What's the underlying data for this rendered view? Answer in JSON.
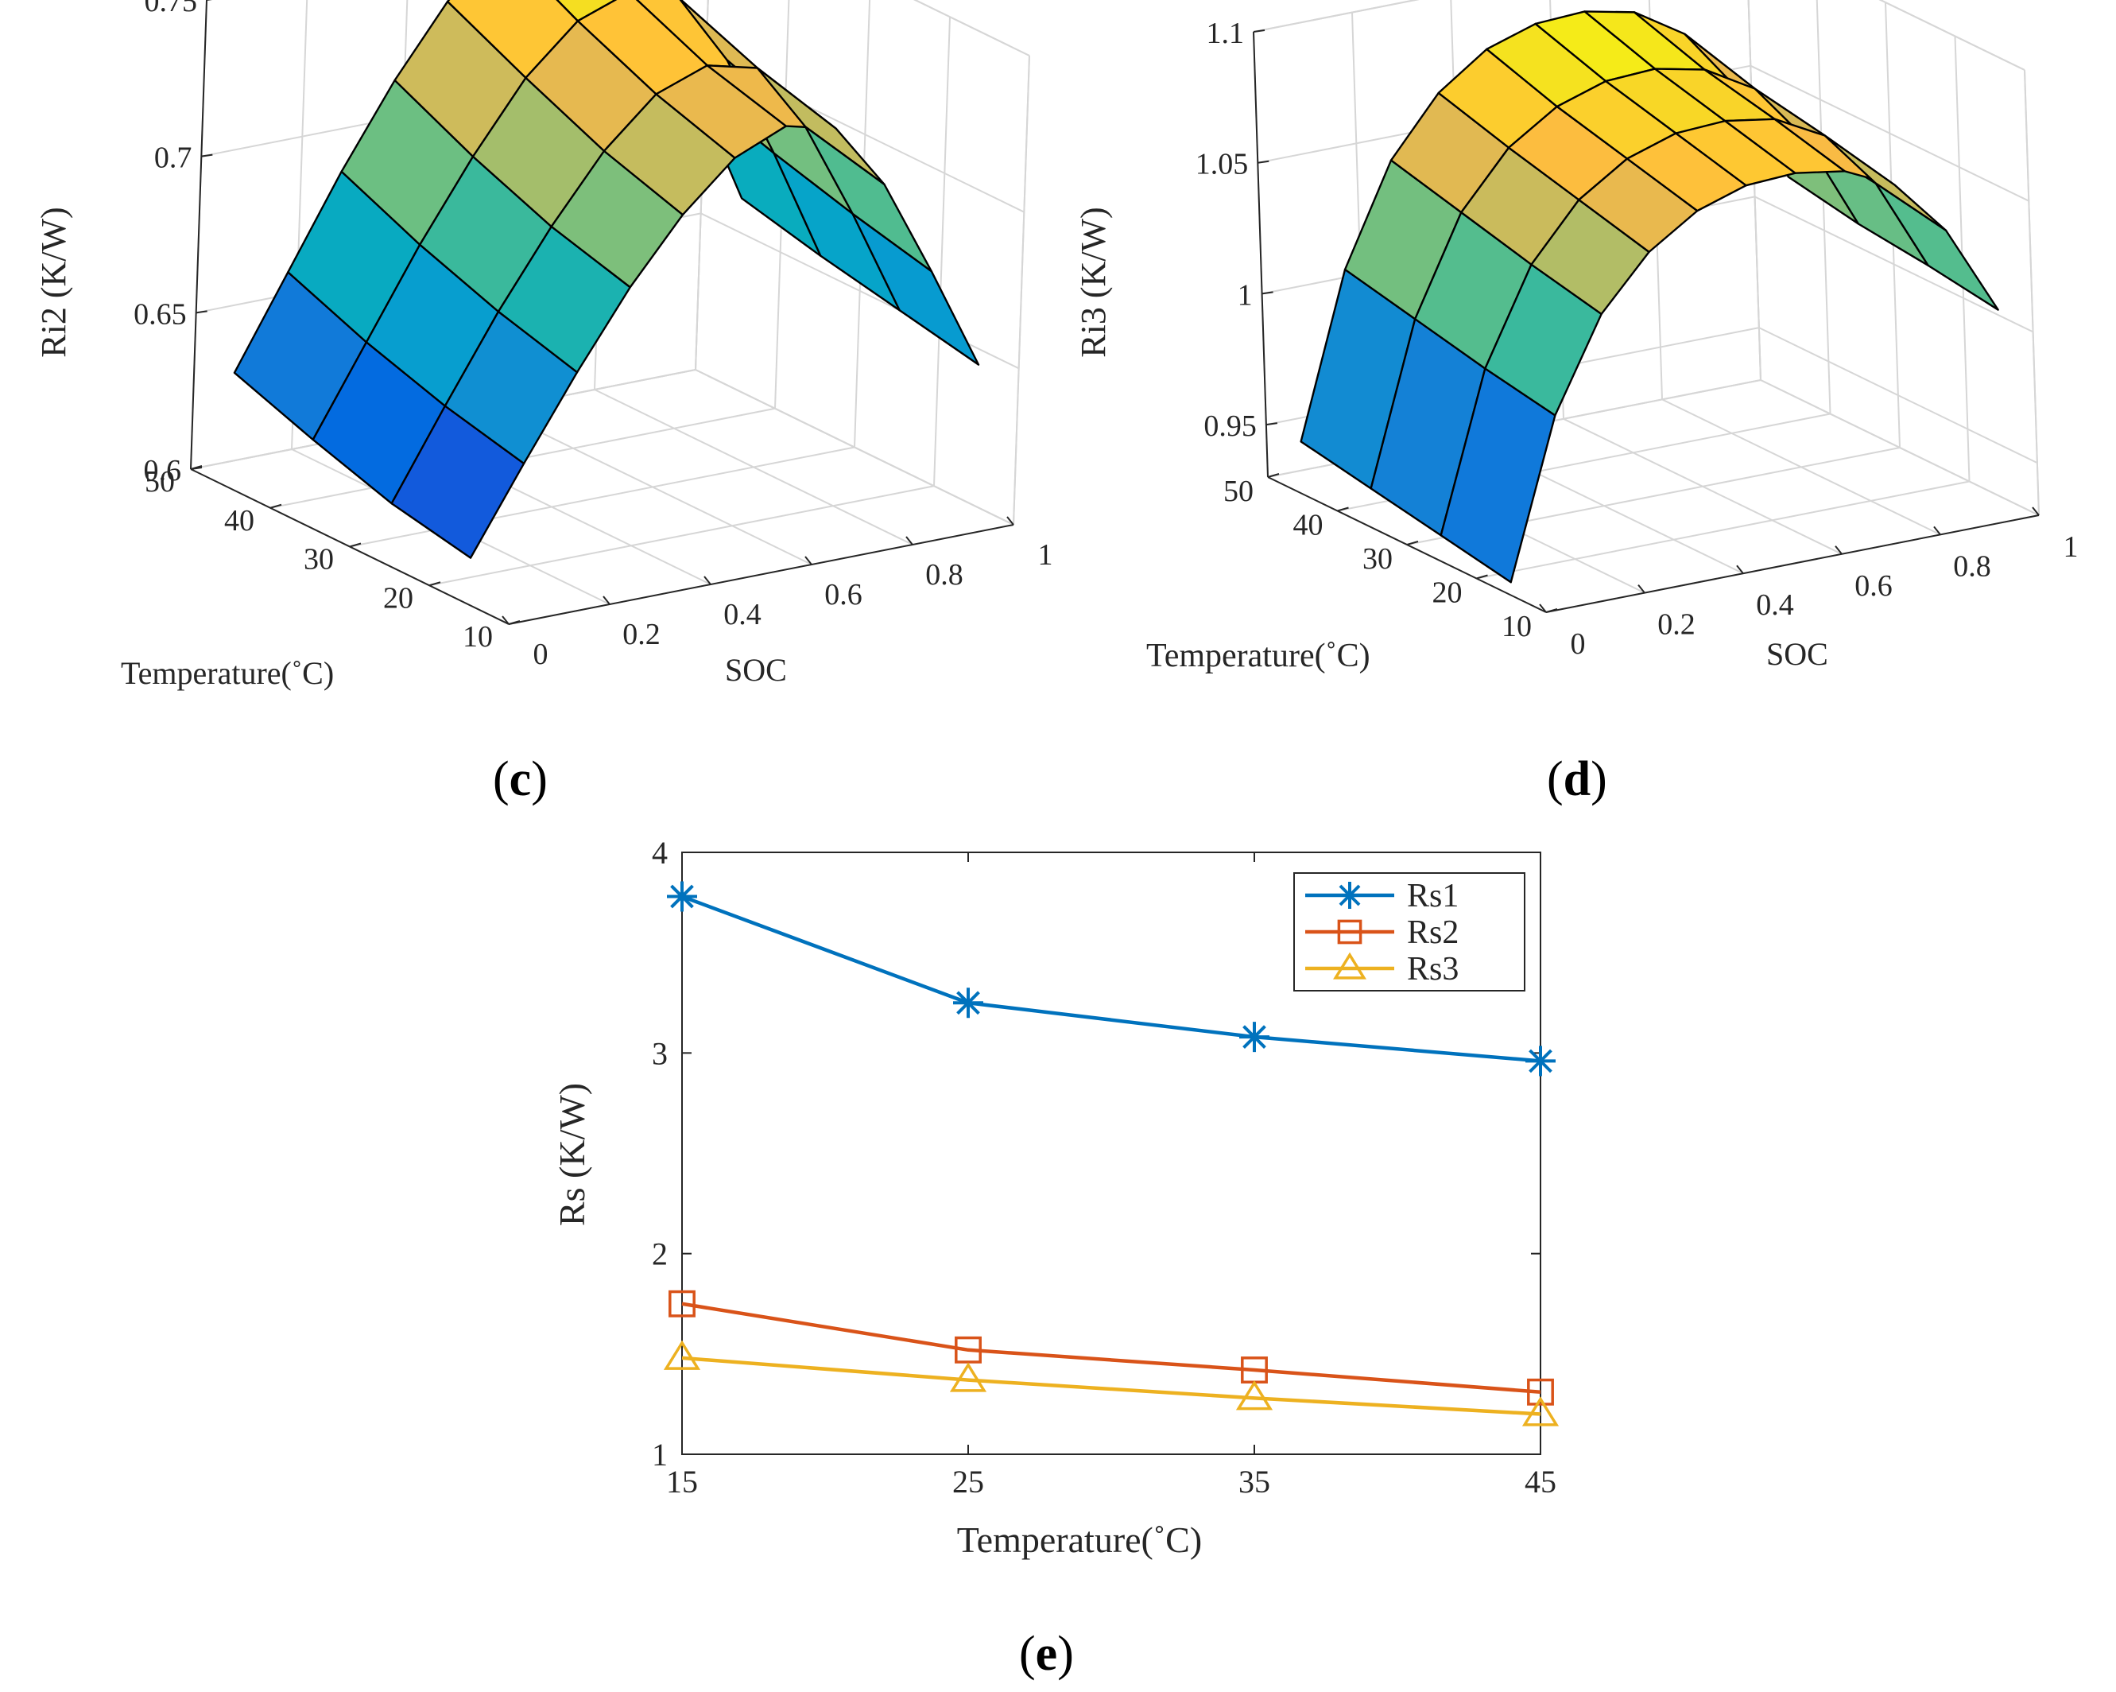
{
  "chart_data": [
    {
      "panel": "(c)",
      "panel_letter": "c",
      "type": "surface",
      "title": "",
      "xlabel": "SOC",
      "ylabel": "Temperature(˚C)",
      "zlabel": "Ri2 (K/W)",
      "x_ticks": [
        "0",
        "0.2",
        "0.4",
        "0.6",
        "0.8",
        "1"
      ],
      "y_ticks": [
        "10",
        "20",
        "30",
        "40",
        "50"
      ],
      "z_ticks": [
        "0.6",
        "0.65",
        "0.7",
        "0.75"
      ],
      "xlim": [
        0,
        1
      ],
      "ylim": [
        10,
        50
      ],
      "zlim": [
        0.6,
        0.75
      ],
      "soc": [
        0,
        0.1,
        0.2,
        0.3,
        0.4,
        0.5,
        0.6,
        0.7,
        0.8,
        0.9,
        1
      ],
      "temperature": [
        15,
        25,
        35,
        45
      ],
      "z": [
        [
          0.615,
          0.642,
          0.668,
          0.692,
          0.712,
          0.727,
          0.734,
          0.73,
          0.709,
          0.678,
          0.645
        ],
        [
          0.62,
          0.648,
          0.675,
          0.699,
          0.72,
          0.735,
          0.741,
          0.737,
          0.715,
          0.684,
          0.65
        ],
        [
          0.628,
          0.656,
          0.684,
          0.709,
          0.731,
          0.746,
          0.752,
          0.747,
          0.724,
          0.691,
          0.655
        ],
        [
          0.637,
          0.666,
          0.695,
          0.721,
          0.743,
          0.759,
          0.765,
          0.759,
          0.734,
          0.699,
          0.661
        ]
      ]
    },
    {
      "panel": "(d)",
      "panel_letter": "d",
      "type": "surface",
      "title": "",
      "xlabel": "SOC",
      "ylabel": "Temperature(˚C)",
      "zlabel": "Ri3 (K/W)",
      "x_ticks": [
        "0",
        "0.2",
        "0.4",
        "0.6",
        "0.8",
        "1"
      ],
      "y_ticks": [
        "10",
        "20",
        "30",
        "40",
        "50"
      ],
      "z_ticks": [
        "0.95",
        "1",
        "1.05",
        "1.1"
      ],
      "xlim": [
        0,
        1
      ],
      "ylim": [
        10,
        50
      ],
      "zlim": [
        0.93,
        1.1
      ],
      "soc": [
        0,
        0.1,
        0.2,
        0.3,
        0.4,
        0.5,
        0.6,
        0.7,
        0.8,
        0.9,
        1
      ],
      "temperature": [
        15,
        25,
        35,
        45
      ],
      "z": [
        [
          0.935,
          0.995,
          1.03,
          1.05,
          1.062,
          1.068,
          1.069,
          1.066,
          1.057,
          1.036,
          1.002
        ],
        [
          0.94,
          1.0,
          1.036,
          1.057,
          1.069,
          1.075,
          1.076,
          1.073,
          1.063,
          1.041,
          1.006
        ],
        [
          0.945,
          1.006,
          1.043,
          1.064,
          1.076,
          1.082,
          1.083,
          1.079,
          1.068,
          1.045,
          1.009
        ],
        [
          0.95,
          1.012,
          1.05,
          1.072,
          1.085,
          1.091,
          1.092,
          1.088,
          1.076,
          1.052,
          1.014
        ]
      ]
    },
    {
      "panel": "(e)",
      "panel_letter": "e",
      "type": "line",
      "title": "",
      "xlabel": "Temperature(˚C)",
      "ylabel": "Rs (K/W)",
      "x": [
        15,
        25,
        35,
        45
      ],
      "x_ticks": [
        "15",
        "25",
        "35",
        "45"
      ],
      "y_ticks": [
        "1",
        "2",
        "3",
        "4"
      ],
      "xlim": [
        15,
        45
      ],
      "ylim": [
        1,
        4
      ],
      "legend_position": "top-right",
      "series": [
        {
          "name": "Rs1",
          "values": [
            3.78,
            3.25,
            3.08,
            2.96
          ],
          "color": "#0072BD",
          "marker": "asterisk"
        },
        {
          "name": "Rs2",
          "values": [
            1.75,
            1.52,
            1.42,
            1.31
          ],
          "color": "#D95319",
          "marker": "square"
        },
        {
          "name": "Rs3",
          "values": [
            1.48,
            1.37,
            1.28,
            1.2
          ],
          "color": "#EDB120",
          "marker": "triangle"
        }
      ]
    }
  ]
}
